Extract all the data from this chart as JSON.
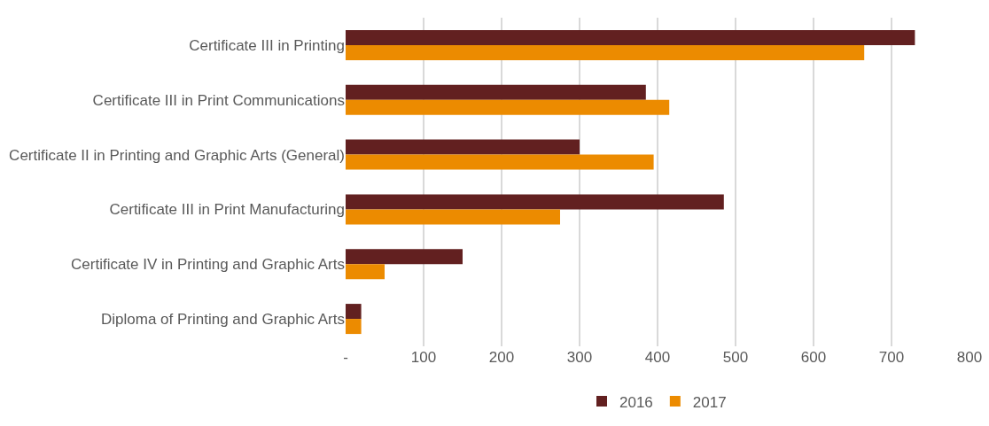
{
  "chart_data": {
    "type": "bar",
    "orientation": "horizontal",
    "categories": [
      "Certificate III in Printing",
      "Certificate III in Print Communications",
      "Certificate II in Printing and Graphic Arts (General)",
      "Certificate III in Print Manufacturing",
      "Certificate IV in Printing and Graphic Arts",
      "Diploma of Printing and Graphic Arts"
    ],
    "series": [
      {
        "name": "2016",
        "color": "#622020",
        "values": [
          730,
          385,
          300,
          485,
          150,
          20
        ]
      },
      {
        "name": "2017",
        "color": "#ec8b00",
        "values": [
          665,
          415,
          395,
          275,
          50,
          20
        ]
      }
    ],
    "xlim": [
      0,
      800
    ],
    "xticks": [
      {
        "value": 0,
        "label": "-"
      },
      100,
      200,
      300,
      400,
      500,
      600,
      700,
      800
    ],
    "grid": "x",
    "legend": "bottom"
  }
}
